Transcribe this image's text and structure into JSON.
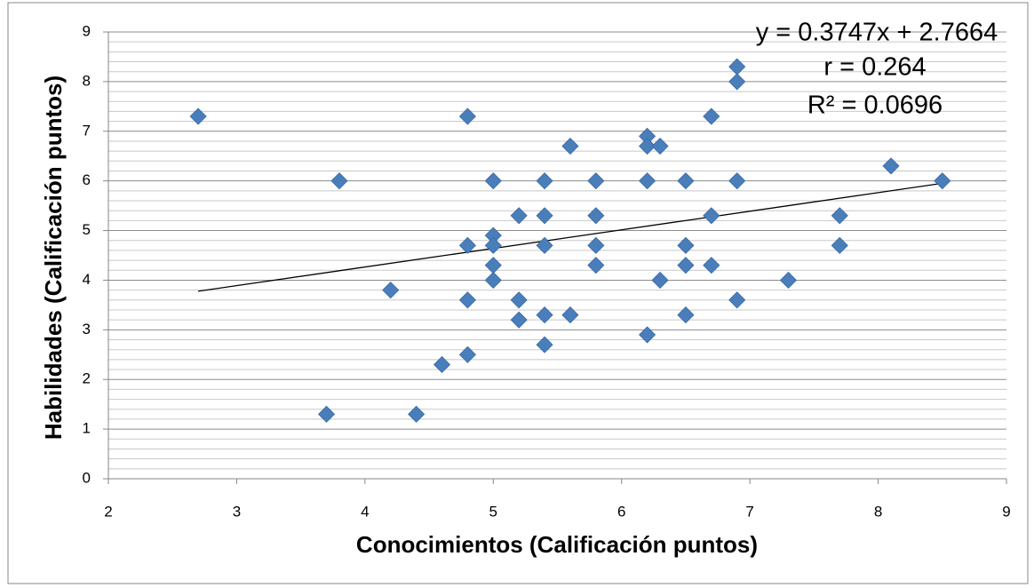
{
  "chart_data": {
    "type": "scatter",
    "x_label": "Conocimientos (Calificación puntos)",
    "y_label": "Habilidades (Calificación puntos)",
    "annotations": [
      "y = 0.3747x + 2.7664",
      "r = 0.264",
      "R² = 0.0696"
    ],
    "color": "#4a7ebb",
    "x": [
      2.7,
      3.7,
      3.8,
      4.2,
      4.4,
      4.6,
      4.8,
      4.8,
      4.8,
      4.8,
      5.0,
      5.0,
      5.0,
      5.0,
      5.0,
      5.2,
      5.2,
      5.2,
      5.4,
      5.4,
      5.4,
      5.4,
      5.4,
      5.6,
      5.6,
      5.8,
      5.8,
      5.8,
      5.8,
      6.2,
      6.2,
      6.2,
      6.2,
      6.3,
      6.3,
      6.5,
      6.5,
      6.5,
      6.5,
      6.7,
      6.7,
      6.7,
      6.9,
      6.9,
      6.9,
      6.9,
      7.3,
      7.7,
      7.7,
      8.1,
      8.5
    ],
    "values": [
      7.3,
      1.3,
      6.0,
      3.8,
      1.3,
      2.3,
      7.3,
      4.7,
      3.6,
      2.5,
      6.0,
      4.9,
      4.7,
      4.3,
      4.0,
      5.3,
      3.6,
      3.2,
      6.0,
      5.3,
      4.7,
      3.3,
      2.7,
      6.7,
      3.3,
      6.0,
      5.3,
      4.7,
      4.3,
      6.9,
      6.7,
      6.0,
      2.9,
      6.7,
      4.0,
      6.0,
      4.7,
      4.3,
      3.3,
      7.3,
      5.3,
      4.3,
      8.3,
      8.0,
      6.0,
      3.6,
      4.0,
      5.3,
      4.7,
      6.3,
      6.0
    ],
    "trendline": {
      "x": [
        2.7,
        8.5
      ],
      "y": [
        3.778,
        5.951
      ]
    },
    "xlim": [
      2,
      9
    ],
    "xticks": [
      2,
      3,
      4,
      5,
      6,
      7,
      8,
      9
    ],
    "ylim": [
      0,
      9
    ],
    "yticks": [
      0,
      1,
      2,
      3,
      4,
      5,
      6,
      7,
      8,
      9
    ],
    "grid": true,
    "minor_grid": true
  }
}
